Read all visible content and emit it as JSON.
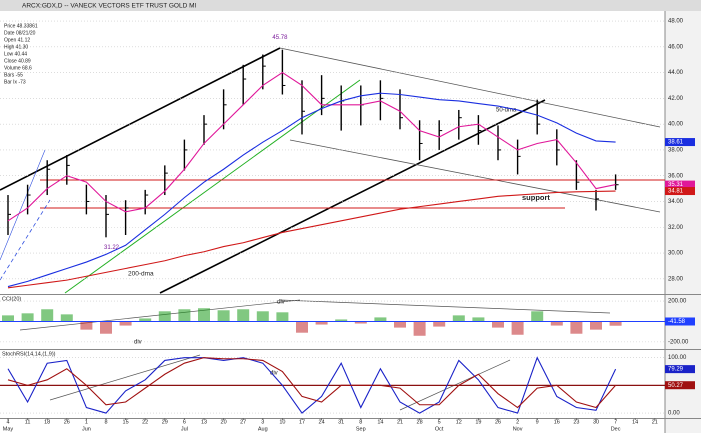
{
  "chart_data": [
    {
      "type": "ohlc",
      "title": "ARCX:GDX,D -- VANECK VECTORS ETF TRUST GOLD MI",
      "info": [
        "Price 48.33861",
        "Date 08/21/20",
        "Open 41.12",
        "High 41.30",
        "Low 40.44",
        "Close 40.89",
        "Volume 68.6",
        "Bars -55",
        "Bar Ix -73"
      ],
      "high": [
        34.5,
        35.3,
        37.2,
        37.6,
        35.3,
        34.5,
        34.1,
        34.9,
        36.8,
        38.8,
        40.7,
        42.7,
        44.6,
        45.4,
        45.78,
        43.4,
        43.8,
        43,
        43,
        43.4,
        42.7,
        40.3,
        40.3,
        41.1,
        40.7,
        39.9,
        38.8,
        41.9,
        39.6,
        37.2,
        34.9,
        36.1,
        null,
        null
      ],
      "low": [
        31.4,
        33,
        34.5,
        35.3,
        33,
        31.22,
        31.4,
        33,
        34.5,
        36.4,
        38.4,
        39.6,
        41.5,
        42.7,
        42.3,
        39.2,
        40.7,
        39.5,
        39.9,
        40.3,
        39.6,
        37.2,
        38,
        38.8,
        38.4,
        37.2,
        36.1,
        39.2,
        36.8,
        34.9,
        33.3,
        34.9,
        null,
        null
      ],
      "close": [
        33,
        34.5,
        36.5,
        36.8,
        34,
        33,
        33.5,
        34.5,
        36.2,
        38,
        40,
        41.5,
        43.5,
        44.5,
        43,
        41,
        42,
        41.8,
        41.5,
        42,
        40.5,
        38.5,
        39.5,
        40.5,
        39.5,
        38,
        37.5,
        40,
        38,
        35.5,
        34.2,
        35.3,
        null,
        null
      ],
      "bar_color": "#000000",
      "series": [
        {
          "color": "#e0189a",
          "values": [
            32.5,
            33.5,
            35,
            36,
            35.5,
            34,
            33.2,
            33.5,
            34.8,
            36.5,
            38.5,
            40,
            41.5,
            43,
            44,
            43,
            41.5,
            41.5,
            41.5,
            41.8,
            41,
            39.5,
            39,
            39.8,
            40,
            39,
            38,
            38.5,
            38.8,
            37,
            35,
            35.31,
            null,
            null
          ]
        },
        {
          "name": "50-dma",
          "color": "#1a2ee0",
          "values": [
            27.4,
            27.8,
            28.3,
            28.8,
            29.3,
            29.9,
            30.6,
            31.8,
            33,
            34.3,
            35.5,
            36.5,
            37.6,
            38.6,
            39.5,
            40.5,
            41.2,
            41.8,
            42.2,
            42.4,
            42.3,
            42.1,
            41.9,
            41.8,
            41.6,
            41.4,
            41.1,
            40.7,
            40.1,
            39.3,
            38.7,
            38.61,
            null,
            null
          ]
        },
        {
          "name": "200-dma",
          "color": "#d01818",
          "values": [
            27.3,
            27.5,
            27.7,
            27.9,
            28.2,
            28.5,
            28.8,
            29.1,
            29.4,
            29.8,
            30.1,
            30.5,
            30.8,
            31.2,
            31.6,
            31.9,
            32.2,
            32.5,
            32.8,
            33.1,
            33.4,
            33.6,
            33.8,
            34,
            34.2,
            34.4,
            34.5,
            34.6,
            34.7,
            34.75,
            34.78,
            34.81,
            null,
            null
          ]
        }
      ],
      "annotations": [
        "support"
      ],
      "ylim": [
        26.9,
        48.7
      ],
      "yticks": [
        {
          "value": 28,
          "label": "28.00"
        },
        {
          "value": 30,
          "label": "30.00"
        },
        {
          "value": 32,
          "label": "32.00"
        },
        {
          "value": 34,
          "label": "34.00"
        },
        {
          "value": 36,
          "label": "36.00"
        },
        {
          "value": 38,
          "label": "38.00"
        },
        {
          "value": 40,
          "label": "40.00"
        },
        {
          "value": 42,
          "label": "42.00"
        },
        {
          "value": 44,
          "label": "44.00"
        },
        {
          "value": 46,
          "label": "46.00"
        },
        {
          "value": 48,
          "label": "48.00"
        }
      ],
      "grid": true
    },
    {
      "type": "bar",
      "title": "CCI(20)",
      "values": [
        60,
        80,
        120,
        70,
        -80,
        -120,
        -40,
        30,
        100,
        120,
        130,
        110,
        120,
        100,
        90,
        -110,
        -30,
        20,
        -20,
        40,
        -60,
        -140,
        -50,
        60,
        40,
        -60,
        -130,
        100,
        -40,
        -120,
        -80,
        -41.58,
        null,
        null
      ],
      "positive_color": "#1a9a1a",
      "negative_color": "#c0282c",
      "zero_color": "#2040ff",
      "annotations": [
        "div",
        "div"
      ],
      "ylim": [
        -260,
        250
      ],
      "yticks": [
        {
          "value": 200,
          "label": "200.00"
        },
        {
          "value": -200,
          "label": "-200.00"
        }
      ]
    },
    {
      "type": "line",
      "title": "StochRSI(14,14,(1,9))",
      "series": [
        {
          "color": "#1a22c8",
          "values": [
            80,
            20,
            90,
            95,
            10,
            0,
            40,
            60,
            95,
            100,
            100,
            95,
            100,
            90,
            50,
            0,
            30,
            90,
            10,
            80,
            20,
            0,
            20,
            95,
            60,
            10,
            0,
            100,
            30,
            10,
            5,
            79.29,
            null,
            null
          ]
        },
        {
          "color": "#a01010",
          "values": [
            60,
            50,
            60,
            80,
            50,
            15,
            20,
            45,
            70,
            90,
            100,
            98,
            98,
            95,
            75,
            30,
            20,
            50,
            50,
            50,
            45,
            15,
            15,
            50,
            70,
            35,
            10,
            45,
            50,
            20,
            10,
            50.27,
            null,
            null
          ]
        }
      ],
      "hline": 50,
      "annotations": [
        "div"
      ],
      "ylim": [
        -12.5,
        112
      ],
      "yticks": [
        {
          "value": 100,
          "label": "100.00"
        },
        {
          "value": 0,
          "label": "0.00"
        }
      ],
      "categories": [
        "4",
        "11",
        "18",
        "26",
        "1",
        "8",
        "15",
        "22",
        "29",
        "6",
        "13",
        "20",
        "27",
        "3",
        "10",
        "17",
        "24",
        "31",
        "8",
        "14",
        "21",
        "28",
        "5",
        "12",
        "19",
        "26",
        "2",
        "9",
        "16",
        "23",
        "30",
        "7",
        "14",
        "21"
      ],
      "months": [
        "May",
        "Jun",
        "Jul",
        "Aug",
        "Sep",
        "Oct",
        "Nov",
        "Dec"
      ]
    }
  ]
}
